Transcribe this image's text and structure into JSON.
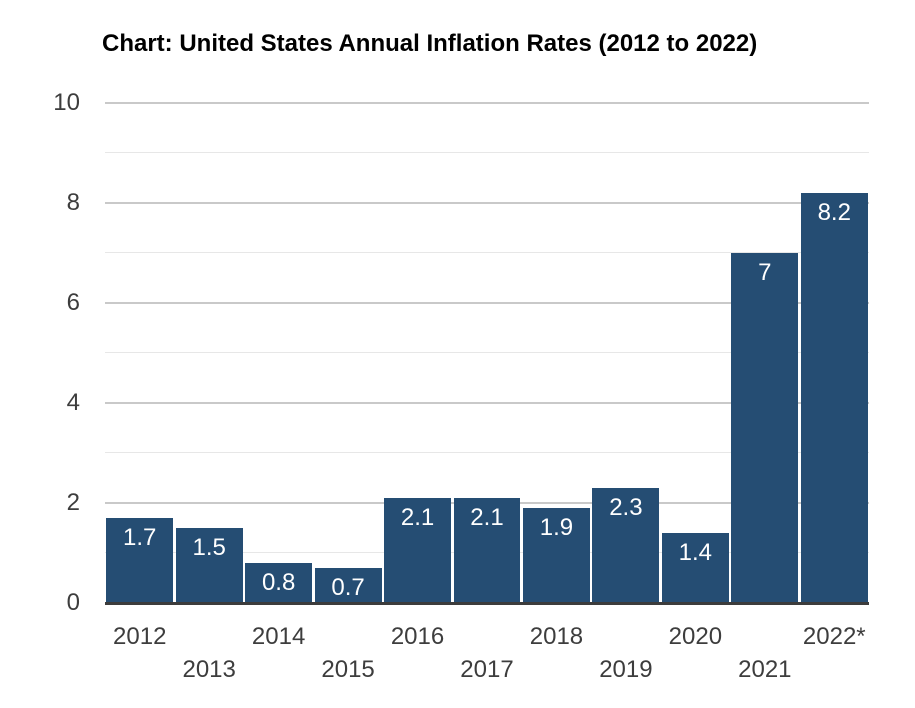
{
  "chart_data": {
    "type": "bar",
    "title": "Chart: United States Annual Inflation Rates (2012 to 2022)",
    "categories": [
      "2012",
      "2013",
      "2014",
      "2015",
      "2016",
      "2017",
      "2018",
      "2019",
      "2020",
      "2021",
      "2022*"
    ],
    "values": [
      1.7,
      1.5,
      0.8,
      0.7,
      2.1,
      2.1,
      1.9,
      2.3,
      1.4,
      7,
      8.2
    ],
    "bar_labels": [
      "1.7",
      "1.5",
      "0.8",
      "0.7",
      "2.1",
      "2.1",
      "1.9",
      "2.3",
      "1.4",
      "7",
      "8.2"
    ],
    "xlabel": "",
    "ylabel": "",
    "ylim": [
      0,
      10
    ],
    "y_tick_labels": [
      "0",
      "2",
      "4",
      "6",
      "8",
      "10"
    ],
    "y_ticks": [
      0,
      2,
      4,
      6,
      8,
      10
    ],
    "gridline_step": 1,
    "grid": "horizontal",
    "legend_position": "none",
    "x_label_layout": "staggered-two-rows",
    "colors": {
      "bar_fill": "#254d73",
      "bar_label_text": "#ffffff",
      "grid_major": "#c9c9c9",
      "grid_minor": "#e7e7e7",
      "axis_line": "#3c3c3c",
      "tick_label_text": "#3d3d3d",
      "title_text": "#000000",
      "background": "#ffffff"
    }
  }
}
